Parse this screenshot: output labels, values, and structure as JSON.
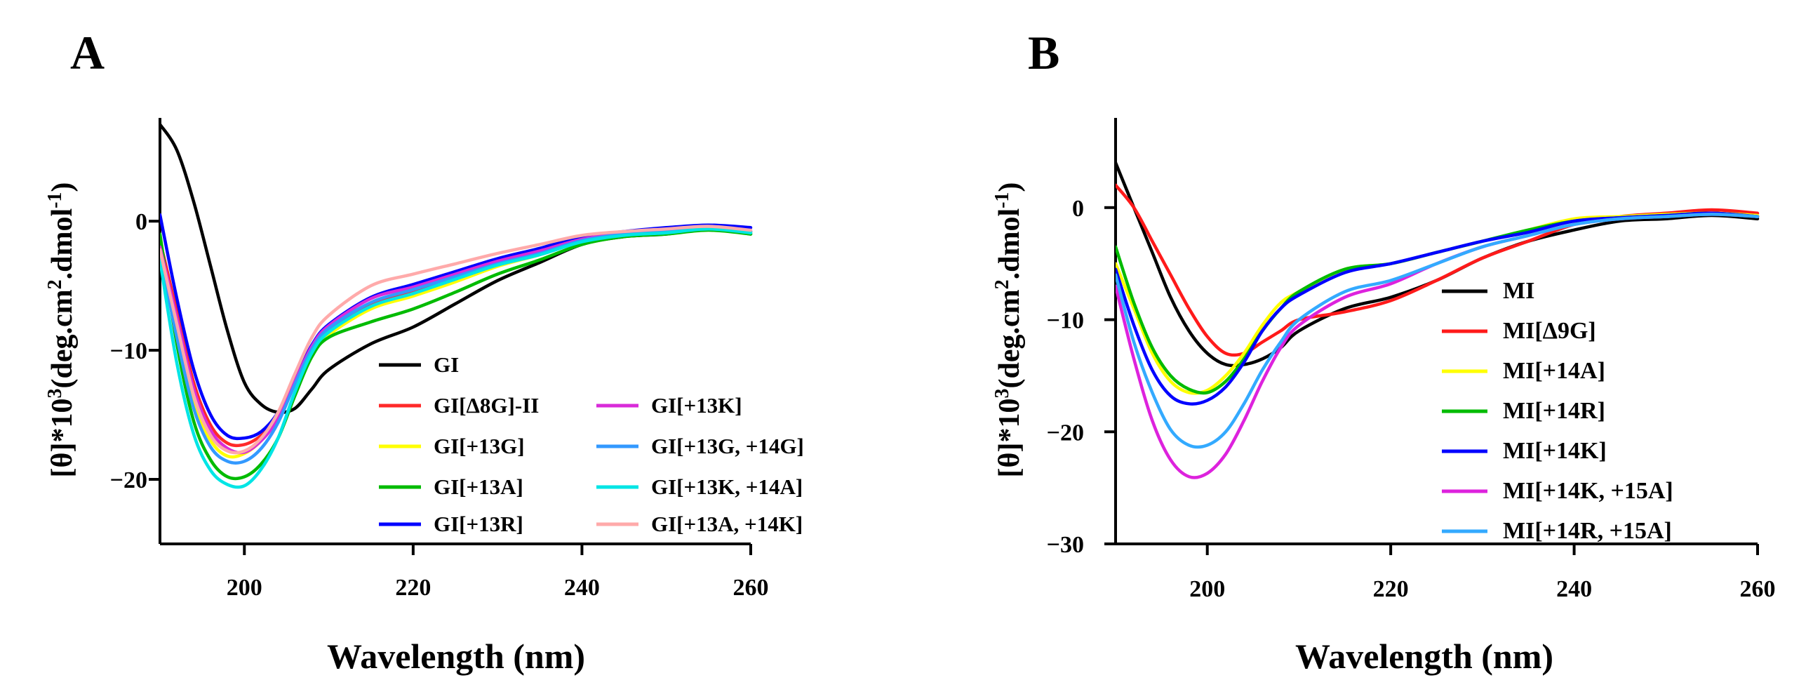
{
  "chart_data": [
    {
      "panel": "A",
      "type": "line",
      "title": "",
      "xlabel": "Wavelength (nm)",
      "ylabel": "[θ]*10³(deg.cm².dmol⁻¹)",
      "xlim": [
        190,
        260
      ],
      "ylim": [
        -25,
        8
      ],
      "x_ticks": [
        "200",
        "220",
        "240",
        "260"
      ],
      "y_ticks": [
        "0",
        "-10",
        "-20"
      ],
      "x_tick_values": [
        200,
        220,
        240,
        260
      ],
      "y_tick_values": [
        0,
        -10,
        -20
      ],
      "legend_position": "lower-right, two columns",
      "series": [
        {
          "name": "GI",
          "color": "#000000",
          "x": [
            190,
            192,
            194,
            196,
            198,
            200,
            202,
            204,
            206,
            208,
            210,
            215,
            220,
            225,
            230,
            235,
            240,
            245,
            250,
            255,
            260
          ],
          "values": [
            7.5,
            5.5,
            1.5,
            -3.5,
            -8.5,
            -12.5,
            -14.2,
            -14.8,
            -14.5,
            -13.0,
            -11.5,
            -9.5,
            -8.2,
            -6.4,
            -4.6,
            -3.2,
            -1.8,
            -1.2,
            -1.0,
            -0.6,
            -1.0
          ]
        },
        {
          "name": "GI[Δ8G]-II",
          "color": "#ff2a2a",
          "x": [
            190,
            192,
            194,
            196,
            198,
            200,
            202,
            204,
            206,
            208,
            210,
            215,
            220,
            225,
            230,
            235,
            240,
            245,
            250,
            255,
            260
          ],
          "values": [
            -1.5,
            -7.0,
            -12.5,
            -15.8,
            -17.2,
            -17.3,
            -16.6,
            -15.2,
            -12.5,
            -10.0,
            -8.5,
            -6.5,
            -5.4,
            -4.3,
            -3.2,
            -2.4,
            -1.5,
            -1.0,
            -0.8,
            -0.5,
            -0.8
          ]
        },
        {
          "name": "GI[+13G]",
          "color": "#ffff00",
          "x": [
            190,
            192,
            194,
            196,
            198,
            200,
            202,
            204,
            206,
            208,
            210,
            215,
            220,
            225,
            230,
            235,
            240,
            245,
            250,
            255,
            260
          ],
          "values": [
            -1.8,
            -8.5,
            -14.0,
            -17.0,
            -18.2,
            -18.0,
            -17.0,
            -15.3,
            -12.6,
            -10.3,
            -8.8,
            -6.8,
            -5.8,
            -4.7,
            -3.5,
            -2.6,
            -1.6,
            -1.1,
            -0.9,
            -0.6,
            -0.9
          ]
        },
        {
          "name": "GI[+13A]",
          "color": "#00bb00",
          "x": [
            190,
            192,
            194,
            196,
            198,
            200,
            202,
            204,
            206,
            208,
            210,
            215,
            220,
            225,
            230,
            235,
            240,
            245,
            250,
            255,
            260
          ],
          "values": [
            -1.0,
            -9.5,
            -15.5,
            -18.5,
            -19.8,
            -19.8,
            -18.8,
            -16.8,
            -13.5,
            -10.5,
            -9.0,
            -7.8,
            -6.8,
            -5.5,
            -4.1,
            -3.0,
            -1.8,
            -1.2,
            -1.0,
            -0.7,
            -1.0
          ]
        },
        {
          "name": "GI[+13R]",
          "color": "#0000ff",
          "x": [
            190,
            192,
            194,
            196,
            198,
            200,
            202,
            204,
            206,
            208,
            210,
            215,
            220,
            225,
            230,
            235,
            240,
            245,
            250,
            255,
            260
          ],
          "values": [
            0.5,
            -6.0,
            -11.5,
            -15.0,
            -16.6,
            -16.8,
            -16.3,
            -14.8,
            -12.2,
            -9.6,
            -8.0,
            -5.9,
            -4.9,
            -3.9,
            -2.9,
            -2.1,
            -1.2,
            -0.8,
            -0.5,
            -0.3,
            -0.5
          ]
        },
        {
          "name": "GI[+13K]",
          "color": "#d92bd9",
          "x": [
            190,
            192,
            194,
            196,
            198,
            200,
            202,
            204,
            206,
            208,
            210,
            215,
            220,
            225,
            230,
            235,
            240,
            245,
            250,
            255,
            260
          ],
          "values": [
            -2.0,
            -7.5,
            -13.0,
            -16.2,
            -17.6,
            -17.9,
            -17.0,
            -15.3,
            -12.4,
            -9.7,
            -8.1,
            -6.0,
            -5.1,
            -4.1,
            -3.1,
            -2.3,
            -1.4,
            -0.9,
            -0.7,
            -0.5,
            -0.8
          ]
        },
        {
          "name": "GI[+13G, +14G]",
          "color": "#3399ff",
          "x": [
            190,
            192,
            194,
            196,
            198,
            200,
            202,
            204,
            206,
            208,
            210,
            215,
            220,
            225,
            230,
            235,
            240,
            245,
            250,
            255,
            260
          ],
          "values": [
            -2.5,
            -9.0,
            -14.5,
            -17.5,
            -18.6,
            -18.6,
            -17.6,
            -15.6,
            -12.6,
            -9.9,
            -8.3,
            -6.3,
            -5.3,
            -4.3,
            -3.3,
            -2.5,
            -1.5,
            -1.0,
            -0.8,
            -0.5,
            -0.8
          ]
        },
        {
          "name": "GI[+13K,  +14A]",
          "color": "#00e5e5",
          "x": [
            190,
            192,
            194,
            196,
            198,
            200,
            202,
            204,
            206,
            208,
            210,
            215,
            220,
            225,
            230,
            235,
            240,
            245,
            250,
            255,
            260
          ],
          "values": [
            -3.0,
            -11.0,
            -16.5,
            -19.3,
            -20.4,
            -20.5,
            -19.2,
            -16.8,
            -13.2,
            -10.2,
            -8.6,
            -6.6,
            -5.6,
            -4.5,
            -3.4,
            -2.6,
            -1.6,
            -1.1,
            -0.9,
            -0.6,
            -0.9
          ]
        },
        {
          "name": "GI[+13A,  +14K]",
          "color": "#ffaaaa",
          "x": [
            190,
            192,
            194,
            196,
            198,
            200,
            202,
            204,
            206,
            208,
            210,
            215,
            220,
            225,
            230,
            235,
            240,
            245,
            250,
            255,
            260
          ],
          "values": [
            -2.2,
            -8.0,
            -13.5,
            -16.6,
            -17.8,
            -17.8,
            -16.8,
            -14.8,
            -11.8,
            -9.0,
            -7.3,
            -5.0,
            -4.1,
            -3.3,
            -2.5,
            -1.8,
            -1.1,
            -0.8,
            -0.6,
            -0.4,
            -0.7
          ]
        }
      ]
    },
    {
      "panel": "B",
      "type": "line",
      "title": "",
      "xlabel": "Wavelength (nm)",
      "ylabel": "[θ]*10³(deg.cm².dmol⁻¹)",
      "xlim": [
        190,
        260
      ],
      "ylim": [
        -30,
        8
      ],
      "x_ticks": [
        "200",
        "220",
        "240",
        "260"
      ],
      "y_ticks": [
        "0",
        "-10",
        "-20",
        "-30"
      ],
      "x_tick_values": [
        200,
        220,
        240,
        260
      ],
      "y_tick_values": [
        0,
        -10,
        -20,
        -30
      ],
      "legend_position": "lower-right, one column",
      "series": [
        {
          "name": "MI",
          "color": "#000000",
          "x": [
            190,
            192,
            194,
            196,
            198,
            200,
            202,
            204,
            206,
            208,
            210,
            215,
            220,
            225,
            230,
            235,
            240,
            245,
            250,
            255,
            260
          ],
          "values": [
            4.0,
            0.0,
            -4.0,
            -8.0,
            -11.0,
            -13.0,
            -14.0,
            -14.0,
            -13.5,
            -12.5,
            -11.0,
            -9.0,
            -8.0,
            -6.5,
            -4.5,
            -3.0,
            -2.0,
            -1.2,
            -1.0,
            -0.7,
            -1.0
          ]
        },
        {
          "name": "MI[Δ9G]",
          "color": "#ff1a1a",
          "x": [
            190,
            192,
            194,
            196,
            198,
            200,
            202,
            204,
            206,
            208,
            210,
            215,
            220,
            225,
            230,
            235,
            240,
            245,
            250,
            255,
            260
          ],
          "values": [
            2.0,
            0.0,
            -3.0,
            -6.0,
            -9.0,
            -11.5,
            -13.0,
            -13.0,
            -12.0,
            -11.0,
            -10.0,
            -9.3,
            -8.3,
            -6.5,
            -4.5,
            -3.0,
            -1.5,
            -0.8,
            -0.5,
            -0.2,
            -0.5
          ]
        },
        {
          "name": "MI[+14A]",
          "color": "#ffff00",
          "x": [
            190,
            192,
            194,
            196,
            198,
            200,
            202,
            204,
            206,
            208,
            210,
            215,
            220,
            225,
            230,
            235,
            240,
            245,
            250,
            255,
            260
          ],
          "values": [
            -5.0,
            -9.0,
            -13.0,
            -15.5,
            -16.5,
            -16.3,
            -15.0,
            -13.0,
            -10.5,
            -8.5,
            -7.5,
            -5.5,
            -5.0,
            -4.0,
            -3.0,
            -2.0,
            -1.0,
            -0.8,
            -0.6,
            -0.5,
            -0.7
          ]
        },
        {
          "name": "MI[+14R]",
          "color": "#00bb00",
          "x": [
            190,
            192,
            194,
            196,
            198,
            200,
            202,
            204,
            206,
            208,
            210,
            215,
            220,
            225,
            230,
            235,
            240,
            245,
            250,
            255,
            260
          ],
          "values": [
            -3.5,
            -8.5,
            -12.5,
            -15.0,
            -16.2,
            -16.5,
            -15.5,
            -13.5,
            -11.0,
            -9.0,
            -7.5,
            -5.5,
            -5.0,
            -4.0,
            -3.0,
            -2.0,
            -1.2,
            -0.9,
            -0.7,
            -0.5,
            -0.8
          ]
        },
        {
          "name": "MI[+14K]",
          "color": "#0000ff",
          "x": [
            190,
            192,
            194,
            196,
            198,
            200,
            202,
            204,
            206,
            208,
            210,
            215,
            220,
            225,
            230,
            235,
            240,
            245,
            250,
            255,
            260
          ],
          "values": [
            -5.5,
            -10.5,
            -14.5,
            -16.8,
            -17.5,
            -17.2,
            -16.0,
            -13.8,
            -11.0,
            -9.0,
            -7.8,
            -5.8,
            -5.0,
            -4.0,
            -3.0,
            -2.2,
            -1.2,
            -0.9,
            -0.7,
            -0.5,
            -0.8
          ]
        },
        {
          "name": "MI[+14K, +15A]",
          "color": "#dd22dd",
          "x": [
            190,
            192,
            194,
            196,
            198,
            200,
            202,
            204,
            206,
            208,
            210,
            215,
            220,
            225,
            230,
            235,
            240,
            245,
            250,
            255,
            260
          ],
          "values": [
            -7.0,
            -13.5,
            -19.0,
            -22.5,
            -24.0,
            -23.7,
            -22.0,
            -19.0,
            -15.5,
            -12.5,
            -10.5,
            -8.0,
            -6.8,
            -5.0,
            -3.5,
            -2.5,
            -1.5,
            -1.0,
            -0.8,
            -0.6,
            -0.8
          ]
        },
        {
          "name": "MI[+14R, +15A]",
          "color": "#33aaff",
          "x": [
            190,
            192,
            194,
            196,
            198,
            200,
            202,
            204,
            206,
            208,
            210,
            215,
            220,
            225,
            230,
            235,
            240,
            245,
            250,
            255,
            260
          ],
          "values": [
            -6.0,
            -12.0,
            -16.5,
            -19.8,
            -21.2,
            -21.2,
            -20.0,
            -17.5,
            -14.5,
            -12.0,
            -10.0,
            -7.5,
            -6.5,
            -5.0,
            -3.5,
            -2.5,
            -1.5,
            -1.0,
            -0.8,
            -0.6,
            -0.8
          ]
        }
      ]
    }
  ]
}
